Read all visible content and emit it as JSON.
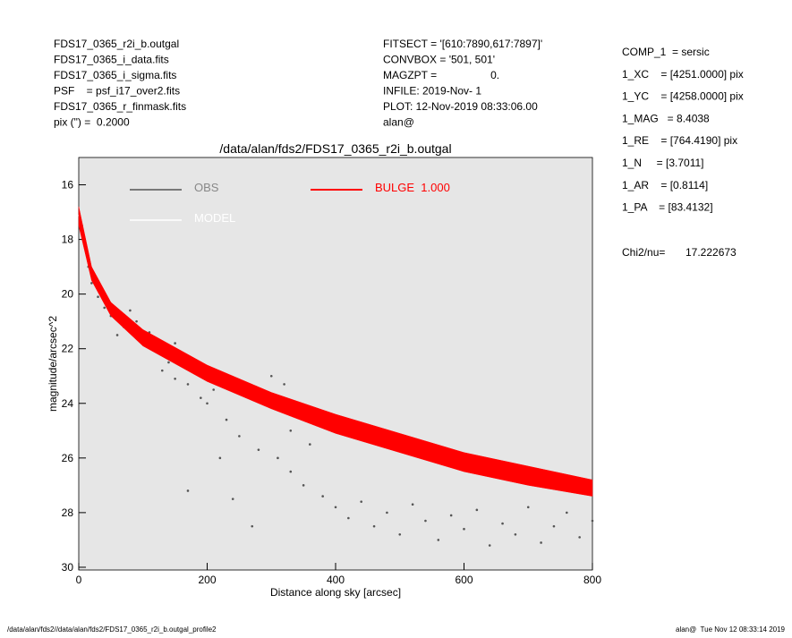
{
  "header": {
    "left": [
      "FDS17_0365_r2i_b.outgal",
      "FDS17_0365_i_data.fits",
      "FDS17_0365_i_sigma.fits",
      "PSF    = psf_i17_over2.fits",
      "FDS17_0365_r_finmask.fits",
      "pix (\") =  0.2000"
    ],
    "middle": [
      "FITSECT = '[610:7890,617:7897]'",
      "CONVBOX = '501, 501'",
      "MAGZPT =                  0.",
      "INFILE: 2019-Nov- 1",
      "PLOT: 12-Nov-2019 08:33:06.00",
      "alan@"
    ],
    "right": [
      "COMP_1  = sersic",
      "1_XC    = [4251.0000] pix",
      "1_YC    = [4258.0000] pix",
      "1_MAG   = 8.4038",
      "1_RE    = [764.4190] pix",
      "1_N     = [3.7011]",
      "1_AR    = [0.8114]",
      "1_PA    = [83.4132]"
    ],
    "chi2": {
      "label": "Chi2/nu=",
      "value": "17.222673"
    }
  },
  "footer": {
    "left": "/data/alan/fds2//data/alan/fds2/FDS17_0365_r2i_b.outgal_profile2",
    "right": "alan@  Tue Nov 12 08:33:14 2019"
  },
  "chart_data": {
    "type": "scatter",
    "title": "/data/alan/fds2/FDS17_0365_r2i_b.outgal",
    "x_label": "Distance along sky [arcsec]",
    "y_label": "magnitude/arcsec^2",
    "xlim": [
      0,
      800
    ],
    "xticks": [
      0,
      200,
      400,
      600,
      800
    ],
    "ylim": [
      30.1,
      15
    ],
    "yticks": [
      16,
      18,
      20,
      22,
      24,
      26,
      28,
      30
    ],
    "background": "#e6e6e6",
    "series": [
      {
        "name": "OBS",
        "color": "#555555",
        "x": [
          5,
          10,
          15,
          20,
          30,
          40,
          50,
          60,
          70,
          80,
          90,
          100,
          110,
          120,
          140,
          150,
          170,
          190,
          200,
          210,
          230,
          250,
          260,
          280,
          300,
          310,
          320,
          330,
          350,
          360,
          380,
          400,
          420,
          440,
          460,
          480,
          500,
          520,
          540,
          560,
          580,
          600,
          620,
          640,
          660,
          680,
          700,
          720,
          740,
          760,
          780,
          800,
          170,
          220,
          240,
          270,
          150,
          130,
          180,
          330
        ],
        "values": [
          17.5,
          18.3,
          19,
          19.6,
          20.1,
          20.5,
          20.8,
          21.5,
          21.2,
          20.6,
          21.0,
          21.6,
          21.4,
          22.0,
          22.5,
          23.1,
          23.3,
          23.8,
          24.0,
          23.5,
          24.6,
          25.2,
          23.6,
          25.7,
          23.0,
          26.0,
          23.3,
          26.5,
          27.0,
          25.5,
          27.4,
          27.8,
          28.2,
          27.6,
          28.5,
          28.0,
          28.8,
          27.7,
          28.3,
          29.0,
          28.1,
          28.6,
          27.9,
          29.2,
          28.4,
          28.8,
          27.8,
          29.1,
          28.5,
          28.0,
          28.9,
          28.3,
          27.2,
          26.0,
          27.5,
          28.5,
          21.8,
          22.8,
          22.6,
          25.0
        ]
      },
      {
        "name": "MODEL",
        "color": "#ffffff",
        "x": [
          0,
          20,
          50,
          100,
          200,
          300,
          400,
          500,
          600,
          700,
          800
        ],
        "values": [
          17.1,
          19.25,
          20.55,
          21.6,
          22.9,
          23.9,
          24.75,
          25.45,
          26.15,
          26.65,
          27.1
        ]
      },
      {
        "name": "BULGE  1.000",
        "color": "#ff0000",
        "x": [
          0,
          20,
          50,
          100,
          200,
          300,
          400,
          500,
          600,
          700,
          800
        ],
        "values": [
          16.8,
          19.0,
          20.3,
          21.3,
          22.6,
          23.6,
          24.4,
          25.1,
          25.8,
          26.3,
          26.8
        ],
        "values_low": [
          17.5,
          19.5,
          20.8,
          21.9,
          23.2,
          24.2,
          25.1,
          25.8,
          26.5,
          27.0,
          27.4
        ]
      }
    ]
  }
}
